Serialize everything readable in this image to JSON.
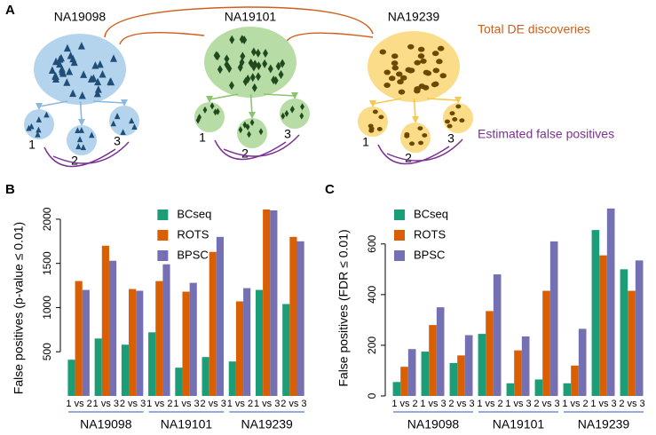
{
  "panel_a": {
    "label": "A",
    "samples": [
      {
        "name": "NA19098",
        "subsets": [
          "1",
          "2",
          "3"
        ]
      },
      {
        "name": "NA19101",
        "subsets": [
          "1",
          "2",
          "3"
        ]
      },
      {
        "name": "NA19239",
        "subsets": [
          "1",
          "2",
          "3"
        ]
      }
    ],
    "total_label": "Total DE discoveries",
    "false_positive_label": "Estimated false positives"
  },
  "chart_data": [
    {
      "panel_label": "B",
      "type": "bar",
      "ylabel": "False positives (p-value ≤ 0.01)",
      "categories": [
        "1 vs 2",
        "1 vs 3",
        "2 vs 3",
        "1 vs 2",
        "1 vs 3",
        "2 vs 3",
        "1 vs 2",
        "1 vs 3",
        "2 vs 3"
      ],
      "groups": [
        "NA19098",
        "NA19101",
        "NA19239"
      ],
      "series": [
        {
          "name": "BCseq",
          "color": "#1b9e77",
          "values": [
            410,
            650,
            580,
            720,
            320,
            440,
            390,
            1200,
            1040
          ]
        },
        {
          "name": "ROTS",
          "color": "#d95f02",
          "values": [
            1300,
            1700,
            1210,
            1300,
            1180,
            1630,
            1070,
            2110,
            1800
          ]
        },
        {
          "name": "BPSC",
          "color": "#7570b3",
          "values": [
            1200,
            1530,
            1190,
            1490,
            1280,
            1800,
            1220,
            2100,
            1750
          ]
        }
      ],
      "ylim": [
        0,
        2150
      ],
      "yticks": [
        500,
        1000,
        1500,
        2000
      ],
      "legend": "top-center"
    },
    {
      "panel_label": "C",
      "type": "bar",
      "ylabel": "False positives (FDR ≤ 0.01)",
      "categories": [
        "1 vs 2",
        "1 vs 3",
        "2 vs 3",
        "1 vs 2",
        "1 vs 3",
        "2 vs 3",
        "1 vs 2",
        "1 vs 3",
        "2 vs 3"
      ],
      "groups": [
        "NA19098",
        "NA19101",
        "NA19239"
      ],
      "series": [
        {
          "name": "BCseq",
          "color": "#1b9e77",
          "values": [
            55,
            175,
            130,
            245,
            50,
            65,
            50,
            655,
            500
          ]
        },
        {
          "name": "ROTS",
          "color": "#d95f02",
          "values": [
            115,
            280,
            160,
            335,
            180,
            415,
            120,
            555,
            415
          ]
        },
        {
          "name": "BPSC",
          "color": "#7570b3",
          "values": [
            185,
            350,
            240,
            480,
            235,
            610,
            265,
            740,
            535
          ]
        }
      ],
      "ylim": [
        0,
        750
      ],
      "yticks": [
        0,
        200,
        400,
        600
      ],
      "legend": "top-left"
    }
  ]
}
